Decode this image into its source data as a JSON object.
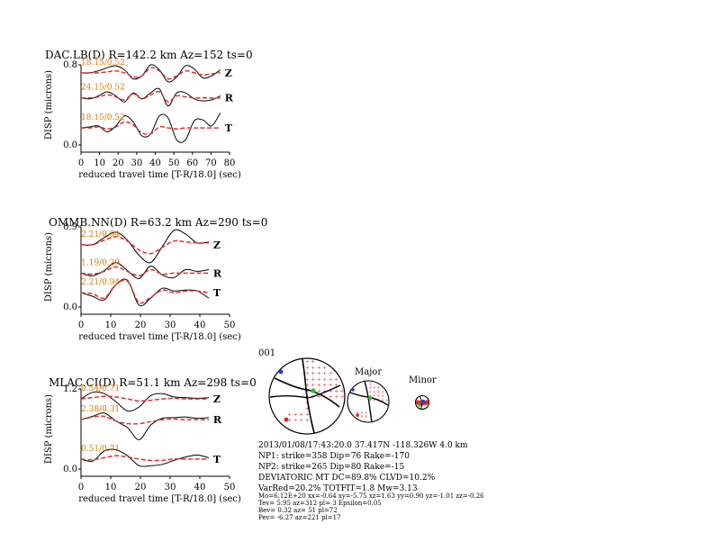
{
  "ui": {
    "event_id": "001",
    "major_label": "Major",
    "minor_label": "Minor",
    "info_lines": [
      "2013/01/08/17:43:20.0 37.417N -118.326W 4.0 km",
      "NP1: strike=358 Dip=76 Rake=-170",
      "NP2: strike=265 Dip=80 Rake=-15",
      "DEVIATORIC MT DC=89.8% CLVD=10.2%",
      "VarRed=20.2% TOTFIT=1.8 Mw=3.13"
    ],
    "tiny_lines": [
      "Mo=6.12E+20 xx=-0.64 xy=-5.75 xz=1.63 yy=0.90 yz=-1.01 zz=-0.26",
      "Tev= 5.95 az=312 pl= 3 Epsilon=0.05",
      "Bev= 0.32 az= 51 pl=72",
      "Pev= -6.27 az=221 pl=17"
    ]
  },
  "colors": {
    "data": "#000000",
    "synthetic": "#e03030",
    "fit_label": "#e07800"
  },
  "chart_data": [
    {
      "type": "line",
      "title": "DAC.LB(D) R=142.2 km Az=152 ts=0",
      "xlabel": "reduced travel time [T-R/18.0] (sec)",
      "ylabel": "DISP (microns)",
      "xlim": [
        0,
        80
      ],
      "xticks": [
        "0",
        "10",
        "20",
        "30",
        "40",
        "50",
        "60",
        "70",
        "80"
      ],
      "ylim": [
        0.0,
        0.8
      ],
      "yticks": [
        "0.0",
        "0.8"
      ],
      "end_x": 75,
      "components": [
        {
          "name": "Z",
          "fit": "18.15/0.52",
          "base": 0.72,
          "obs": [
            0,
            0,
            0.02,
            0.05,
            0.07,
            0.03,
            -0.06,
            -0.03,
            0.08,
            0.03,
            -0.09,
            -0.04,
            0.07,
            0.04,
            -0.05,
            -0.03,
            0.03
          ],
          "syn": [
            0,
            0,
            0,
            0.01,
            0.02,
            0,
            -0.04,
            -0.03,
            0.05,
            0.02,
            -0.06,
            -0.03,
            0.02,
            0,
            -0.02,
            -0.01,
            0
          ]
        },
        {
          "name": "R",
          "fit": "24.15/0.52",
          "base": 0.47,
          "obs": [
            0,
            -0.01,
            0.02,
            0.06,
            0.02,
            -0.04,
            0.05,
            -0.01,
            0.05,
            0.09,
            -0.08,
            0.05,
            0.05,
            -0.01,
            -0.03,
            -0.02,
            0.02
          ],
          "syn": [
            0,
            0,
            0.01,
            0.03,
            0.01,
            -0.02,
            0.04,
            -0.01,
            0.03,
            0.06,
            -0.04,
            0.02,
            0.01,
            0,
            0,
            0,
            0
          ]
        },
        {
          "name": "T",
          "fit": "18.15/0.52",
          "base": 0.17,
          "obs": [
            0,
            0.01,
            0.02,
            -0.04,
            0.02,
            0.12,
            0.06,
            -0.08,
            -0.06,
            0.12,
            0.1,
            -0.12,
            -0.12,
            0.07,
            0.08,
            0.02,
            0.15
          ],
          "syn": [
            0,
            0,
            0.01,
            -0.01,
            0.01,
            0.06,
            0.03,
            -0.05,
            -0.06,
            0.01,
            0,
            -0.01,
            0,
            0,
            0,
            0,
            0
          ]
        }
      ]
    },
    {
      "type": "line",
      "title": "OMMB.NN(D) R=63.2 km Az=290 ts=0",
      "xlabel": "reduced travel time [T-R/18.0] (sec)",
      "ylabel": "DISP (microns)",
      "xlim": [
        0,
        50
      ],
      "xticks": [
        "0",
        "10",
        "20",
        "30",
        "40",
        "50"
      ],
      "ylim": [
        0.0,
        0.9
      ],
      "yticks": [
        "0.0",
        "0.9"
      ],
      "end_x": 43,
      "components": [
        {
          "name": "Z",
          "fit": "2.21/0.94",
          "base": 0.7,
          "obs": [
            0,
            0,
            0.08,
            0.14,
            0.05,
            -0.12,
            -0.2,
            -0.02,
            0.16,
            0.12,
            0.02,
            0.03
          ],
          "syn": [
            0,
            0,
            0.05,
            0.09,
            0.04,
            -0.06,
            -0.1,
            -0.03,
            0.04,
            0.03,
            0.02,
            0.02
          ]
        },
        {
          "name": "R",
          "fit": "1.19/0.29",
          "base": 0.38,
          "obs": [
            0,
            -0.03,
            0.03,
            0.12,
            0.03,
            -0.06,
            0.08,
            -0.02,
            -0.05,
            0.04,
            0.02,
            0.04
          ],
          "syn": [
            0,
            -0.01,
            0.02,
            0.07,
            0.02,
            -0.03,
            0.04,
            -0.01,
            0,
            0,
            0,
            0
          ]
        },
        {
          "name": "T",
          "fit": "2.21/0.94",
          "base": 0.16,
          "obs": [
            0,
            -0.04,
            -0.08,
            0.09,
            0.14,
            -0.14,
            -0.06,
            0.05,
            0.02,
            0.03,
            0.02,
            -0.06
          ],
          "syn": [
            0,
            -0.01,
            -0.06,
            0.09,
            0.13,
            -0.11,
            -0.05,
            0.03,
            0,
            0.02,
            0.02,
            0
          ]
        }
      ]
    },
    {
      "type": "line",
      "title": "MLAC.CI(D) R=51.1 km Az=298 ts=0",
      "xlabel": "reduced travel time [T-R/18.0] (sec)",
      "ylabel": "DISP (microns)",
      "xlim": [
        0,
        50
      ],
      "xticks": [
        "0",
        "10",
        "20",
        "30",
        "40",
        "50"
      ],
      "ylim": [
        0.0,
        1.2
      ],
      "yticks": [
        "0.0",
        "1.2"
      ],
      "end_x": 43,
      "components": [
        {
          "name": "Z",
          "fit": "0.54/0.71",
          "base": 1.05,
          "obs": [
            0,
            0.1,
            0.08,
            -0.04,
            -0.18,
            -0.12,
            0.05,
            0.08,
            0.03,
            0.02,
            0.01,
            0.02
          ],
          "syn": [
            0,
            0.02,
            0.04,
            0.03,
            0,
            -0.03,
            -0.02,
            0,
            0.01,
            0,
            0,
            0
          ]
        },
        {
          "name": "R",
          "fit": "2.38/0.31",
          "base": 0.74,
          "obs": [
            0,
            0.05,
            0.1,
            -0.02,
            -0.12,
            -0.3,
            -0.08,
            0.02,
            0.03,
            0.04,
            0.02,
            0.03
          ],
          "syn": [
            0,
            0.04,
            0.05,
            -0.02,
            -0.06,
            -0.06,
            -0.03,
            0,
            0.01,
            0,
            0,
            0
          ]
        },
        {
          "name": "T",
          "fit": "0.51/0.71",
          "base": 0.15,
          "obs": [
            0,
            -0.03,
            0.12,
            0.14,
            0.05,
            -0.1,
            -0.1,
            -0.08,
            -0.02,
            0.03,
            0.06,
            0.02
          ],
          "syn": [
            0,
            -0.01,
            0.02,
            0.05,
            0.03,
            0,
            -0.02,
            -0.02,
            0,
            0,
            0,
            0
          ]
        }
      ]
    }
  ]
}
